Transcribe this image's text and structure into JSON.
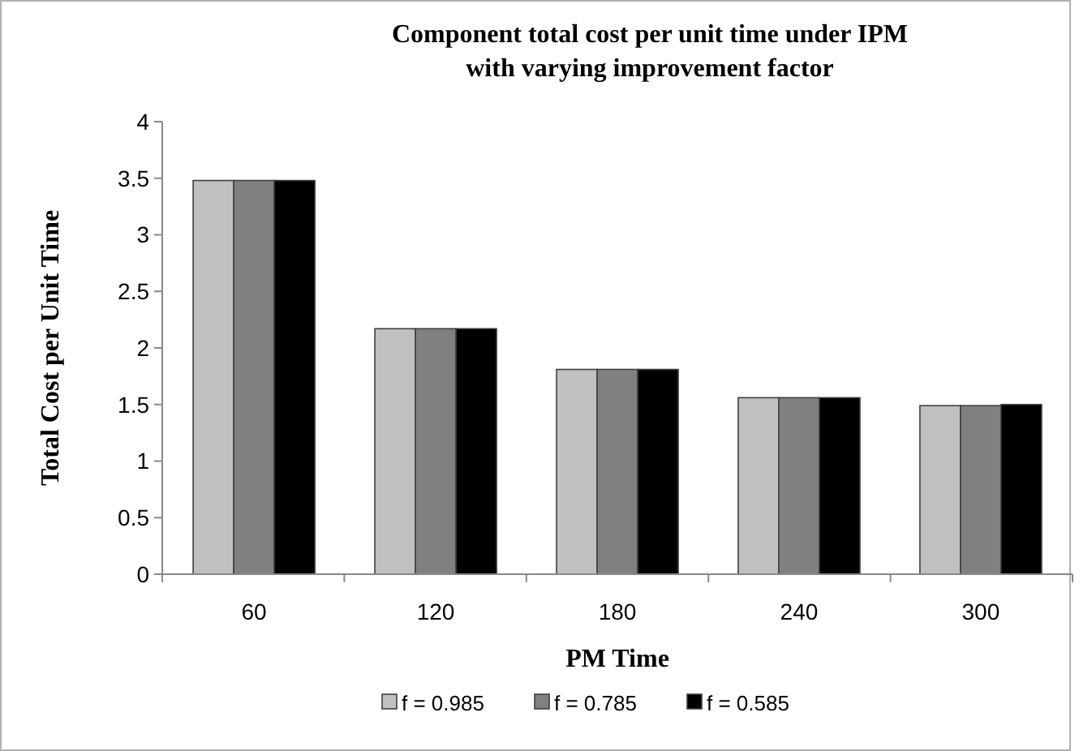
{
  "chart_data": {
    "type": "bar",
    "title": "Component total cost per unit time under IPM with varying improvement factor",
    "xlabel": "PM Time",
    "ylabel": "Total Cost per Unit Time",
    "categories": [
      "60",
      "120",
      "180",
      "240",
      "300"
    ],
    "series": [
      {
        "name": "f = 0.985",
        "color": "#c0c0c0",
        "values": [
          3.48,
          2.17,
          1.81,
          1.56,
          1.49
        ]
      },
      {
        "name": "f = 0.785",
        "color": "#808080",
        "values": [
          3.48,
          2.17,
          1.81,
          1.56,
          1.49
        ]
      },
      {
        "name": "f = 0.585",
        "color": "#000000",
        "values": [
          3.48,
          2.17,
          1.81,
          1.56,
          1.5
        ]
      }
    ],
    "ylim": [
      0,
      4
    ],
    "yticks": [
      0,
      0.5,
      1,
      1.5,
      2,
      2.5,
      3,
      3.5,
      4
    ],
    "grid": false,
    "legend": "bottom"
  }
}
